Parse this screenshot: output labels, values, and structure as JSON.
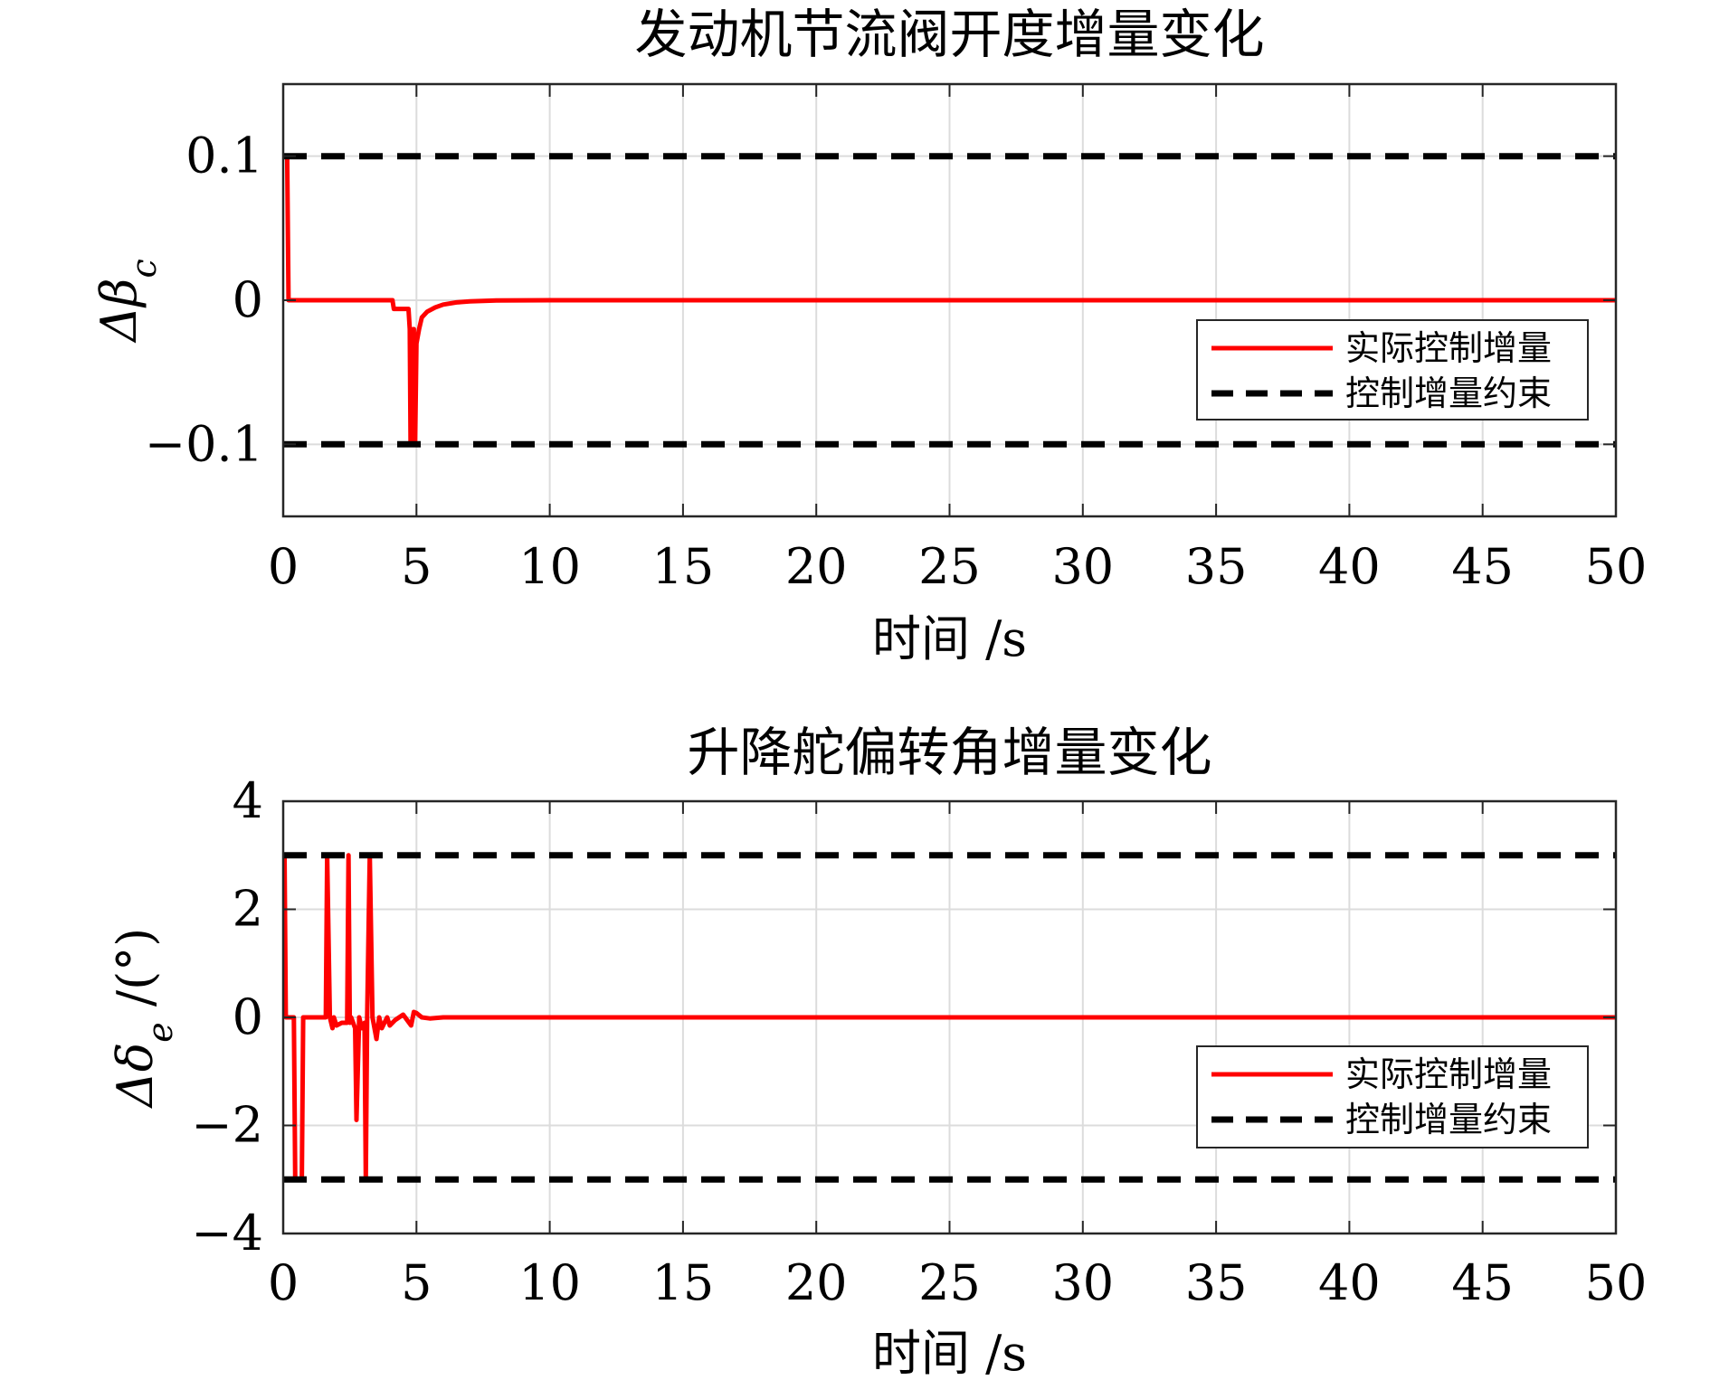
{
  "chart_data": [
    {
      "type": "line",
      "title": "发动机节流阀开度增量变化",
      "xlabel": "时间 /s",
      "ylabel": {
        "prefix": "Δβ",
        "sub": "c",
        "suffix": ""
      },
      "xlim": [
        0,
        50
      ],
      "ylim": [
        -0.15,
        0.15
      ],
      "xticks": [
        0,
        5,
        10,
        15,
        20,
        25,
        30,
        35,
        40,
        45,
        50
      ],
      "yticks": [
        -0.1,
        0,
        0.1
      ],
      "ytick_labels": [
        "−0.1",
        "0",
        "0.1"
      ],
      "grid": true,
      "legend_position": "right-center",
      "legend": [
        "实际控制增量",
        "控制增量约束"
      ],
      "series": [
        {
          "name": "实际控制增量",
          "color": "#ff0000",
          "style": "solid",
          "x": [
            0,
            0.15,
            0.2,
            0.25,
            4.1,
            4.15,
            4.7,
            4.75,
            4.78,
            4.8,
            4.85,
            4.9,
            4.95,
            5.0,
            5.1,
            5.2,
            5.4,
            5.7,
            6.0,
            6.5,
            7.0,
            8.0,
            10.0,
            50.0
          ],
          "y": [
            0.1,
            0.1,
            0.0,
            0.0,
            0.0,
            -0.006,
            -0.006,
            -0.02,
            -0.1,
            -0.02,
            -0.1,
            -0.02,
            -0.1,
            -0.03,
            -0.02,
            -0.012,
            -0.008,
            -0.005,
            -0.003,
            -0.0015,
            -0.0008,
            -0.0002,
            0.0,
            0.0
          ]
        },
        {
          "name": "控制增量约束",
          "color": "#000000",
          "style": "dashed",
          "x": [
            0,
            50
          ],
          "y": [
            0.1,
            0.1
          ]
        },
        {
          "name": "控制增量约束",
          "color": "#000000",
          "style": "dashed",
          "x": [
            0,
            50
          ],
          "y": [
            -0.1,
            -0.1
          ]
        }
      ]
    },
    {
      "type": "line",
      "title": "升降舵偏转角增量变化",
      "xlabel": "时间 /s",
      "ylabel": {
        "prefix": "Δδ",
        "sub": "e",
        "suffix": " /(°)"
      },
      "xlim": [
        0,
        50
      ],
      "ylim": [
        -4,
        4
      ],
      "xticks": [
        0,
        5,
        10,
        15,
        20,
        25,
        30,
        35,
        40,
        45,
        50
      ],
      "yticks": [
        -4,
        -2,
        0,
        2,
        4
      ],
      "ytick_labels": [
        "−4",
        "−2",
        "0",
        "2",
        "4"
      ],
      "grid": true,
      "legend_position": "right-center",
      "legend": [
        "实际控制增量",
        "控制增量约束"
      ],
      "series": [
        {
          "name": "实际控制增量",
          "color": "#ff0000",
          "style": "solid",
          "x": [
            0,
            0.05,
            0.1,
            0.4,
            0.45,
            0.7,
            0.75,
            1.6,
            1.65,
            1.75,
            1.85,
            1.9,
            2.0,
            2.2,
            2.4,
            2.45,
            2.5,
            2.55,
            2.7,
            2.75,
            2.85,
            2.95,
            3.05,
            3.1,
            3.15,
            3.25,
            3.35,
            3.5,
            3.6,
            3.7,
            3.8,
            3.9,
            4.0,
            4.2,
            4.5,
            4.8,
            4.9,
            5.0,
            5.2,
            5.5,
            6.0,
            7.0,
            50.0
          ],
          "y": [
            3.0,
            3.0,
            0.0,
            0.0,
            -3.0,
            -3.0,
            0.0,
            0.0,
            3.0,
            0.0,
            -0.2,
            0.0,
            -0.15,
            -0.1,
            -0.1,
            3.0,
            -0.1,
            0.0,
            -0.2,
            -1.9,
            0.0,
            -0.2,
            -0.1,
            -3.0,
            0.0,
            3.0,
            0.0,
            -0.4,
            0.0,
            -0.2,
            -0.1,
            0.0,
            -0.15,
            -0.05,
            0.05,
            -0.15,
            0.1,
            0.08,
            0.0,
            -0.02,
            0.0,
            0.0,
            0.0
          ]
        },
        {
          "name": "控制增量约束",
          "color": "#000000",
          "style": "dashed",
          "x": [
            0,
            50
          ],
          "y": [
            3.0,
            3.0
          ]
        },
        {
          "name": "控制增量约束",
          "color": "#000000",
          "style": "dashed",
          "x": [
            0,
            50
          ],
          "y": [
            -3.0,
            -3.0
          ]
        }
      ]
    }
  ]
}
